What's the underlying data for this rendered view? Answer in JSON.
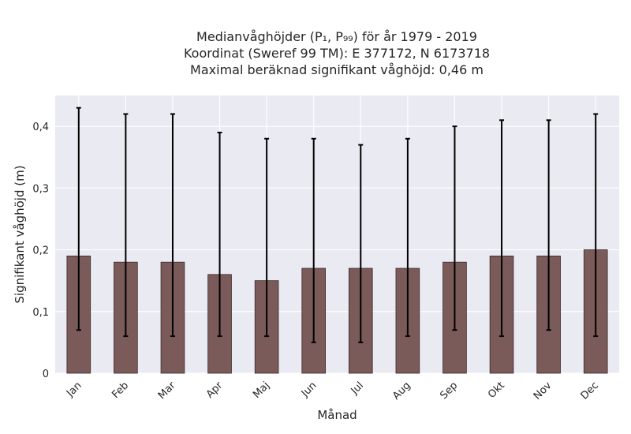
{
  "chart_data": {
    "type": "bar",
    "title_lines": [
      "Medianvåghöjder (P₁, P₉₉) för år 1979 - 2019",
      "Koordinat (Sweref 99 TM): E 377172, N 6173718",
      "Maximal beräknad signifikant våghöjd: 0,46 m"
    ],
    "xlabel": "Månad",
    "ylabel": "Signifikant våghöjd (m)",
    "categories": [
      "Jan",
      "Feb",
      "Mar",
      "Apr",
      "Maj",
      "Jun",
      "Jul",
      "Aug",
      "Sep",
      "Okt",
      "Nov",
      "Dec"
    ],
    "values": [
      0.19,
      0.18,
      0.18,
      0.16,
      0.15,
      0.17,
      0.17,
      0.17,
      0.18,
      0.19,
      0.19,
      0.2
    ],
    "err_low": [
      0.07,
      0.06,
      0.06,
      0.06,
      0.06,
      0.05,
      0.05,
      0.06,
      0.07,
      0.06,
      0.07,
      0.06
    ],
    "err_high": [
      0.43,
      0.42,
      0.42,
      0.39,
      0.38,
      0.38,
      0.37,
      0.38,
      0.4,
      0.41,
      0.41,
      0.42
    ],
    "ylim": [
      0,
      0.45
    ],
    "yticks": [
      0,
      0.1,
      0.2,
      0.3,
      0.4
    ],
    "ytick_labels": [
      "0",
      "0,1",
      "0,2",
      "0,3",
      "0,4"
    ],
    "grid": true,
    "colors": {
      "bar": "#7b5a5a",
      "plot_bg": "#eaeaf2",
      "grid": "#ffffff",
      "error": "#000000"
    }
  }
}
